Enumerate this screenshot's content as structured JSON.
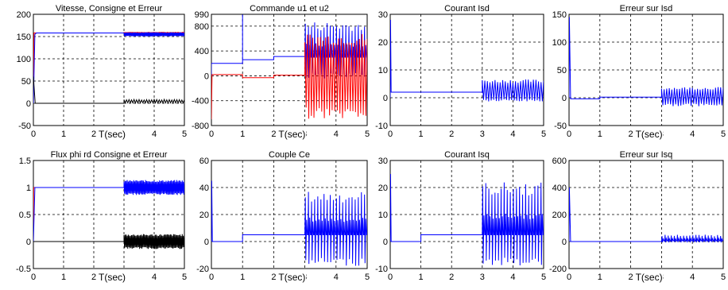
{
  "chart_data": [
    {
      "type": "line",
      "title": "Vitesse, Consigne et Erreur",
      "xlabel": "T(sec)",
      "xlim": [
        0,
        5
      ],
      "ylim": [
        -50,
        200
      ],
      "xticks": [
        0,
        1,
        2,
        3,
        4,
        5
      ],
      "yticks": [
        -50,
        0,
        50,
        100,
        150,
        200
      ],
      "xtick_labels": [
        "0",
        "1",
        "2",
        "3",
        "4",
        "5"
      ],
      "ytick_labels": [
        "-50",
        "0",
        "50",
        "100",
        "150",
        "200"
      ],
      "grid": true,
      "colors": {
        "consigne": "#ff0000",
        "vitesse": "#0000ff",
        "erreur": "#000000"
      }
    },
    {
      "type": "line",
      "title": "Commande u1 et u2",
      "xlabel": "T(sec)",
      "xlim": [
        0,
        5
      ],
      "ylim": [
        -800,
        990
      ],
      "xticks": [
        0,
        1,
        2,
        3,
        4,
        5
      ],
      "yticks": [
        -800,
        -400,
        0,
        400,
        800,
        990
      ],
      "xtick_labels": [
        "0",
        "1",
        "2",
        "3",
        "4",
        "5"
      ],
      "ytick_labels": [
        "-800",
        "-400",
        "0",
        "400",
        "800",
        "990"
      ],
      "grid": true,
      "colors": {
        "u1": "#0000ff",
        "u2": "#ff0000"
      }
    },
    {
      "type": "line",
      "title": "Courant Isd",
      "xlabel": "",
      "xlim": [
        0,
        5
      ],
      "ylim": [
        -10,
        30
      ],
      "xticks": [
        0,
        1,
        2,
        3,
        4,
        5
      ],
      "yticks": [
        -10,
        0,
        10,
        20,
        30
      ],
      "xtick_labels": [
        "0",
        "1",
        "2",
        "3",
        "4",
        "5"
      ],
      "ytick_labels": [
        "-10",
        "0",
        "10",
        "20",
        "30"
      ],
      "grid": true,
      "colors": {
        "isd": "#0000ff"
      }
    },
    {
      "type": "line",
      "title": "Erreur sur Isd",
      "xlabel": "T(sec)",
      "xlim": [
        0,
        5
      ],
      "ylim": [
        -50,
        150
      ],
      "xticks": [
        0,
        1,
        2,
        3,
        4,
        5
      ],
      "yticks": [
        -50,
        0,
        50,
        100,
        150
      ],
      "xtick_labels": [
        "0",
        "1",
        "2",
        "3",
        "4",
        "5"
      ],
      "ytick_labels": [
        "-50",
        "0",
        "50",
        "100",
        "150"
      ],
      "grid": true,
      "colors": {
        "erreur": "#0000ff"
      }
    },
    {
      "type": "line",
      "title": "Flux phi rd Consigne et Erreur",
      "xlabel": "T(sec)",
      "xlim": [
        0,
        5
      ],
      "ylim": [
        -0.5,
        1.5
      ],
      "xticks": [
        0,
        1,
        2,
        3,
        4,
        5
      ],
      "yticks": [
        -0.5,
        0,
        0.5,
        1,
        1.5
      ],
      "xtick_labels": [
        "0",
        "1",
        "2",
        "3",
        "4",
        "5"
      ],
      "ytick_labels": [
        "-0.5",
        "0",
        "0.5",
        "1",
        "1.5"
      ],
      "grid": true,
      "colors": {
        "consigne": "#ff0000",
        "flux": "#0000ff",
        "erreur": "#000000"
      }
    },
    {
      "type": "line",
      "title": "Couple Ce",
      "xlabel": "T(sec)",
      "xlim": [
        0,
        5
      ],
      "ylim": [
        -20,
        60
      ],
      "xticks": [
        0,
        1,
        2,
        3,
        4,
        5
      ],
      "yticks": [
        -20,
        0,
        20,
        40,
        60
      ],
      "xtick_labels": [
        "0",
        "1",
        "2",
        "3",
        "4",
        "5"
      ],
      "ytick_labels": [
        "-20",
        "0",
        "20",
        "40",
        "60"
      ],
      "grid": true,
      "colors": {
        "ce": "#0000ff"
      }
    },
    {
      "type": "line",
      "title": "Courant Isq",
      "xlabel": "",
      "xlim": [
        0,
        5
      ],
      "ylim": [
        -10,
        30
      ],
      "xticks": [
        0,
        1,
        2,
        3,
        4,
        5
      ],
      "yticks": [
        -10,
        0,
        10,
        20,
        30
      ],
      "xtick_labels": [
        "0",
        "1",
        "2",
        "3",
        "4",
        "5"
      ],
      "ytick_labels": [
        "-10",
        "0",
        "10",
        "20",
        "30"
      ],
      "grid": true,
      "colors": {
        "isq": "#0000ff"
      }
    },
    {
      "type": "line",
      "title": "Erreur sur Isq",
      "xlabel": "T(sec)",
      "xlim": [
        0,
        5
      ],
      "ylim": [
        -200,
        600
      ],
      "xticks": [
        0,
        1,
        2,
        3,
        4,
        5
      ],
      "yticks": [
        -200,
        0,
        200,
        400,
        600
      ],
      "xtick_labels": [
        "0",
        "1",
        "2",
        "3",
        "4",
        "5"
      ],
      "ytick_labels": [
        "-200",
        "0",
        "200",
        "400",
        "600"
      ],
      "grid": true,
      "colors": {
        "erreur": "#0000ff"
      }
    }
  ]
}
